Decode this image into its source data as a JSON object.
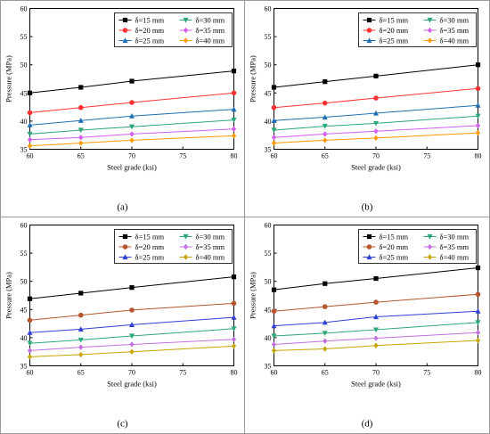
{
  "figure": {
    "panels": [
      "(a)",
      "(b)",
      "(c)",
      "(d)"
    ]
  },
  "chart_data": [
    {
      "panel": "(a)",
      "type": "line",
      "xlabel": "Steel grade (ksi)",
      "ylabel": "Pressure (MPa)",
      "xlim": [
        60,
        80
      ],
      "ylim": [
        35,
        60
      ],
      "xticks": [
        60,
        65,
        70,
        75,
        80
      ],
      "yticks": [
        35,
        40,
        45,
        50,
        55,
        60
      ],
      "legend_placement": "top-right",
      "x": [
        60,
        65,
        70,
        80
      ],
      "series": [
        {
          "name": "δ=15 mm",
          "color": "#000000",
          "marker": "square",
          "values": [
            45.0,
            46.0,
            47.1,
            48.9
          ]
        },
        {
          "name": "δ=20 mm",
          "color": "#ff3333",
          "marker": "circle",
          "values": [
            41.5,
            42.4,
            43.3,
            45.0
          ]
        },
        {
          "name": "δ=25 mm",
          "color": "#1f6fb4",
          "marker": "triangle-up",
          "values": [
            39.3,
            40.1,
            40.9,
            42.1
          ]
        },
        {
          "name": "δ=30 mm",
          "color": "#2aa876",
          "marker": "triangle-down",
          "values": [
            37.7,
            38.4,
            39.0,
            40.2
          ]
        },
        {
          "name": "δ=35 mm",
          "color": "#d45cf0",
          "marker": "diamond",
          "values": [
            36.7,
            37.1,
            37.7,
            38.6
          ]
        },
        {
          "name": "δ=40 mm",
          "color": "#ff9900",
          "marker": "diamond",
          "values": [
            35.6,
            36.1,
            36.6,
            37.4
          ]
        }
      ]
    },
    {
      "panel": "(b)",
      "type": "line",
      "xlabel": "Steel grade (ksi)",
      "ylabel": "Pressure (MPa)",
      "xlim": [
        60,
        80
      ],
      "ylim": [
        35,
        60
      ],
      "xticks": [
        60,
        65,
        70,
        75,
        80
      ],
      "yticks": [
        35,
        40,
        45,
        50,
        55,
        60
      ],
      "legend_placement": "top-right",
      "x": [
        60,
        65,
        70,
        80
      ],
      "series": [
        {
          "name": "δ=15 mm",
          "color": "#000000",
          "marker": "square",
          "values": [
            46.0,
            47.0,
            48.0,
            50.0
          ]
        },
        {
          "name": "δ=20 mm",
          "color": "#ff3333",
          "marker": "circle",
          "values": [
            42.4,
            43.2,
            44.1,
            45.8
          ]
        },
        {
          "name": "δ=25 mm",
          "color": "#1f6fb4",
          "marker": "triangle-up",
          "values": [
            40.1,
            40.7,
            41.4,
            42.8
          ]
        },
        {
          "name": "δ=30 mm",
          "color": "#2aa876",
          "marker": "triangle-down",
          "values": [
            38.4,
            39.1,
            39.6,
            40.9
          ]
        },
        {
          "name": "δ=35 mm",
          "color": "#d45cf0",
          "marker": "diamond",
          "values": [
            37.1,
            37.7,
            38.2,
            39.2
          ]
        },
        {
          "name": "δ=40 mm",
          "color": "#ff9900",
          "marker": "diamond",
          "values": [
            36.1,
            36.6,
            37.0,
            37.9
          ]
        }
      ]
    },
    {
      "panel": "(c)",
      "type": "line",
      "xlabel": "Steel grade (ksi)",
      "ylabel": "Pressure (MPa)",
      "xlim": [
        60,
        80
      ],
      "ylim": [
        35,
        60
      ],
      "xticks": [
        60,
        65,
        70,
        75,
        80
      ],
      "yticks": [
        35,
        40,
        45,
        50,
        55,
        60
      ],
      "legend_placement": "top-right",
      "x": [
        60,
        65,
        70,
        80
      ],
      "series": [
        {
          "name": "δ=15 mm",
          "color": "#000000",
          "marker": "square",
          "values": [
            46.9,
            47.9,
            48.9,
            50.8
          ]
        },
        {
          "name": "δ=20 mm",
          "color": "#b5562d",
          "marker": "circle",
          "values": [
            43.1,
            44.0,
            44.9,
            46.1
          ]
        },
        {
          "name": "δ=25 mm",
          "color": "#2f3fd6",
          "marker": "triangle-up",
          "values": [
            40.9,
            41.5,
            42.3,
            43.6
          ]
        },
        {
          "name": "δ=30 mm",
          "color": "#2aa876",
          "marker": "triangle-down",
          "values": [
            39.0,
            39.6,
            40.3,
            41.6
          ]
        },
        {
          "name": "δ=35 mm",
          "color": "#c070e0",
          "marker": "diamond",
          "values": [
            37.7,
            38.3,
            38.8,
            39.7
          ]
        },
        {
          "name": "δ=40 mm",
          "color": "#c9a400",
          "marker": "diamond",
          "values": [
            36.6,
            37.0,
            37.5,
            38.5
          ]
        }
      ]
    },
    {
      "panel": "(d)",
      "type": "line",
      "xlabel": "Steel grade (ksi)",
      "ylabel": "Pressure (MPa)",
      "xlim": [
        60,
        80
      ],
      "ylim": [
        35,
        60
      ],
      "xticks": [
        60,
        65,
        70,
        75,
        80
      ],
      "yticks": [
        35,
        40,
        45,
        50,
        55,
        60
      ],
      "legend_placement": "top-right",
      "x": [
        60,
        65,
        70,
        80
      ],
      "series": [
        {
          "name": "δ=15 mm",
          "color": "#000000",
          "marker": "square",
          "values": [
            48.5,
            49.6,
            50.5,
            52.4
          ]
        },
        {
          "name": "δ=20 mm",
          "color": "#b5562d",
          "marker": "circle",
          "values": [
            44.7,
            45.5,
            46.3,
            47.7
          ]
        },
        {
          "name": "δ=25 mm",
          "color": "#2f3fd6",
          "marker": "triangle-up",
          "values": [
            42.1,
            42.7,
            43.7,
            44.7
          ]
        },
        {
          "name": "δ=30 mm",
          "color": "#2aa876",
          "marker": "triangle-down",
          "values": [
            40.3,
            40.8,
            41.4,
            42.7
          ]
        },
        {
          "name": "δ=35 mm",
          "color": "#c070e0",
          "marker": "diamond",
          "values": [
            38.8,
            39.4,
            39.9,
            40.9
          ]
        },
        {
          "name": "δ=40 mm",
          "color": "#c9a400",
          "marker": "diamond",
          "values": [
            37.7,
            38.0,
            38.6,
            39.5
          ]
        }
      ]
    }
  ]
}
